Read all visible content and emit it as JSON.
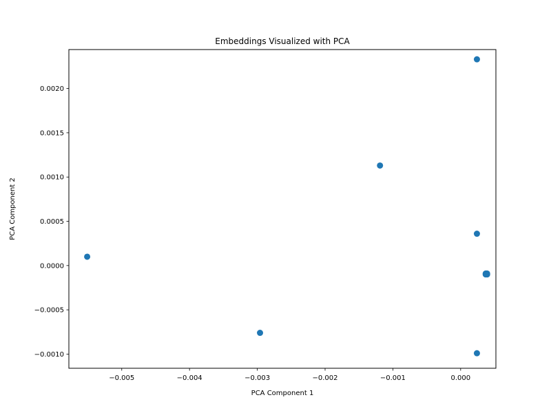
{
  "chart_data": {
    "type": "scatter",
    "title": "Embeddings Visualized with PCA",
    "xlabel": "PCA Component 1",
    "ylabel": "PCA Component 2",
    "xlim": [
      -0.00578,
      0.00052
    ],
    "ylim": [
      -0.00116,
      0.00244
    ],
    "grid": false,
    "marker_color": "#1f77b4",
    "xticks": [
      {
        "value": -0.005,
        "label": "−0.005"
      },
      {
        "value": -0.004,
        "label": "−0.004"
      },
      {
        "value": -0.003,
        "label": "−0.003"
      },
      {
        "value": -0.002,
        "label": "−0.002"
      },
      {
        "value": -0.001,
        "label": "−0.001"
      },
      {
        "value": 0.0,
        "label": "0.000"
      }
    ],
    "yticks": [
      {
        "value": -0.001,
        "label": "−0.0010"
      },
      {
        "value": -0.0005,
        "label": "−0.0005"
      },
      {
        "value": 0.0,
        "label": "0.0000"
      },
      {
        "value": 0.0005,
        "label": "0.0005"
      },
      {
        "value": 0.001,
        "label": "0.0010"
      },
      {
        "value": 0.0015,
        "label": "0.0015"
      },
      {
        "value": 0.002,
        "label": "0.0020"
      }
    ],
    "points": [
      {
        "x": 0.00024,
        "y": 0.00233
      },
      {
        "x": -0.00119,
        "y": 0.00113
      },
      {
        "x": 0.00024,
        "y": 0.00036
      },
      {
        "x": -0.00551,
        "y": 0.0001
      },
      {
        "x": 0.00037,
        "y": -9e-05
      },
      {
        "x": 0.00038,
        "y": -9e-05
      },
      {
        "x": 0.00039,
        "y": -9e-05
      },
      {
        "x": 0.00037,
        "y": -0.0001
      },
      {
        "x": 0.00039,
        "y": -0.0001
      },
      {
        "x": -0.00296,
        "y": -0.00076
      },
      {
        "x": 0.00024,
        "y": -0.00099
      }
    ]
  }
}
